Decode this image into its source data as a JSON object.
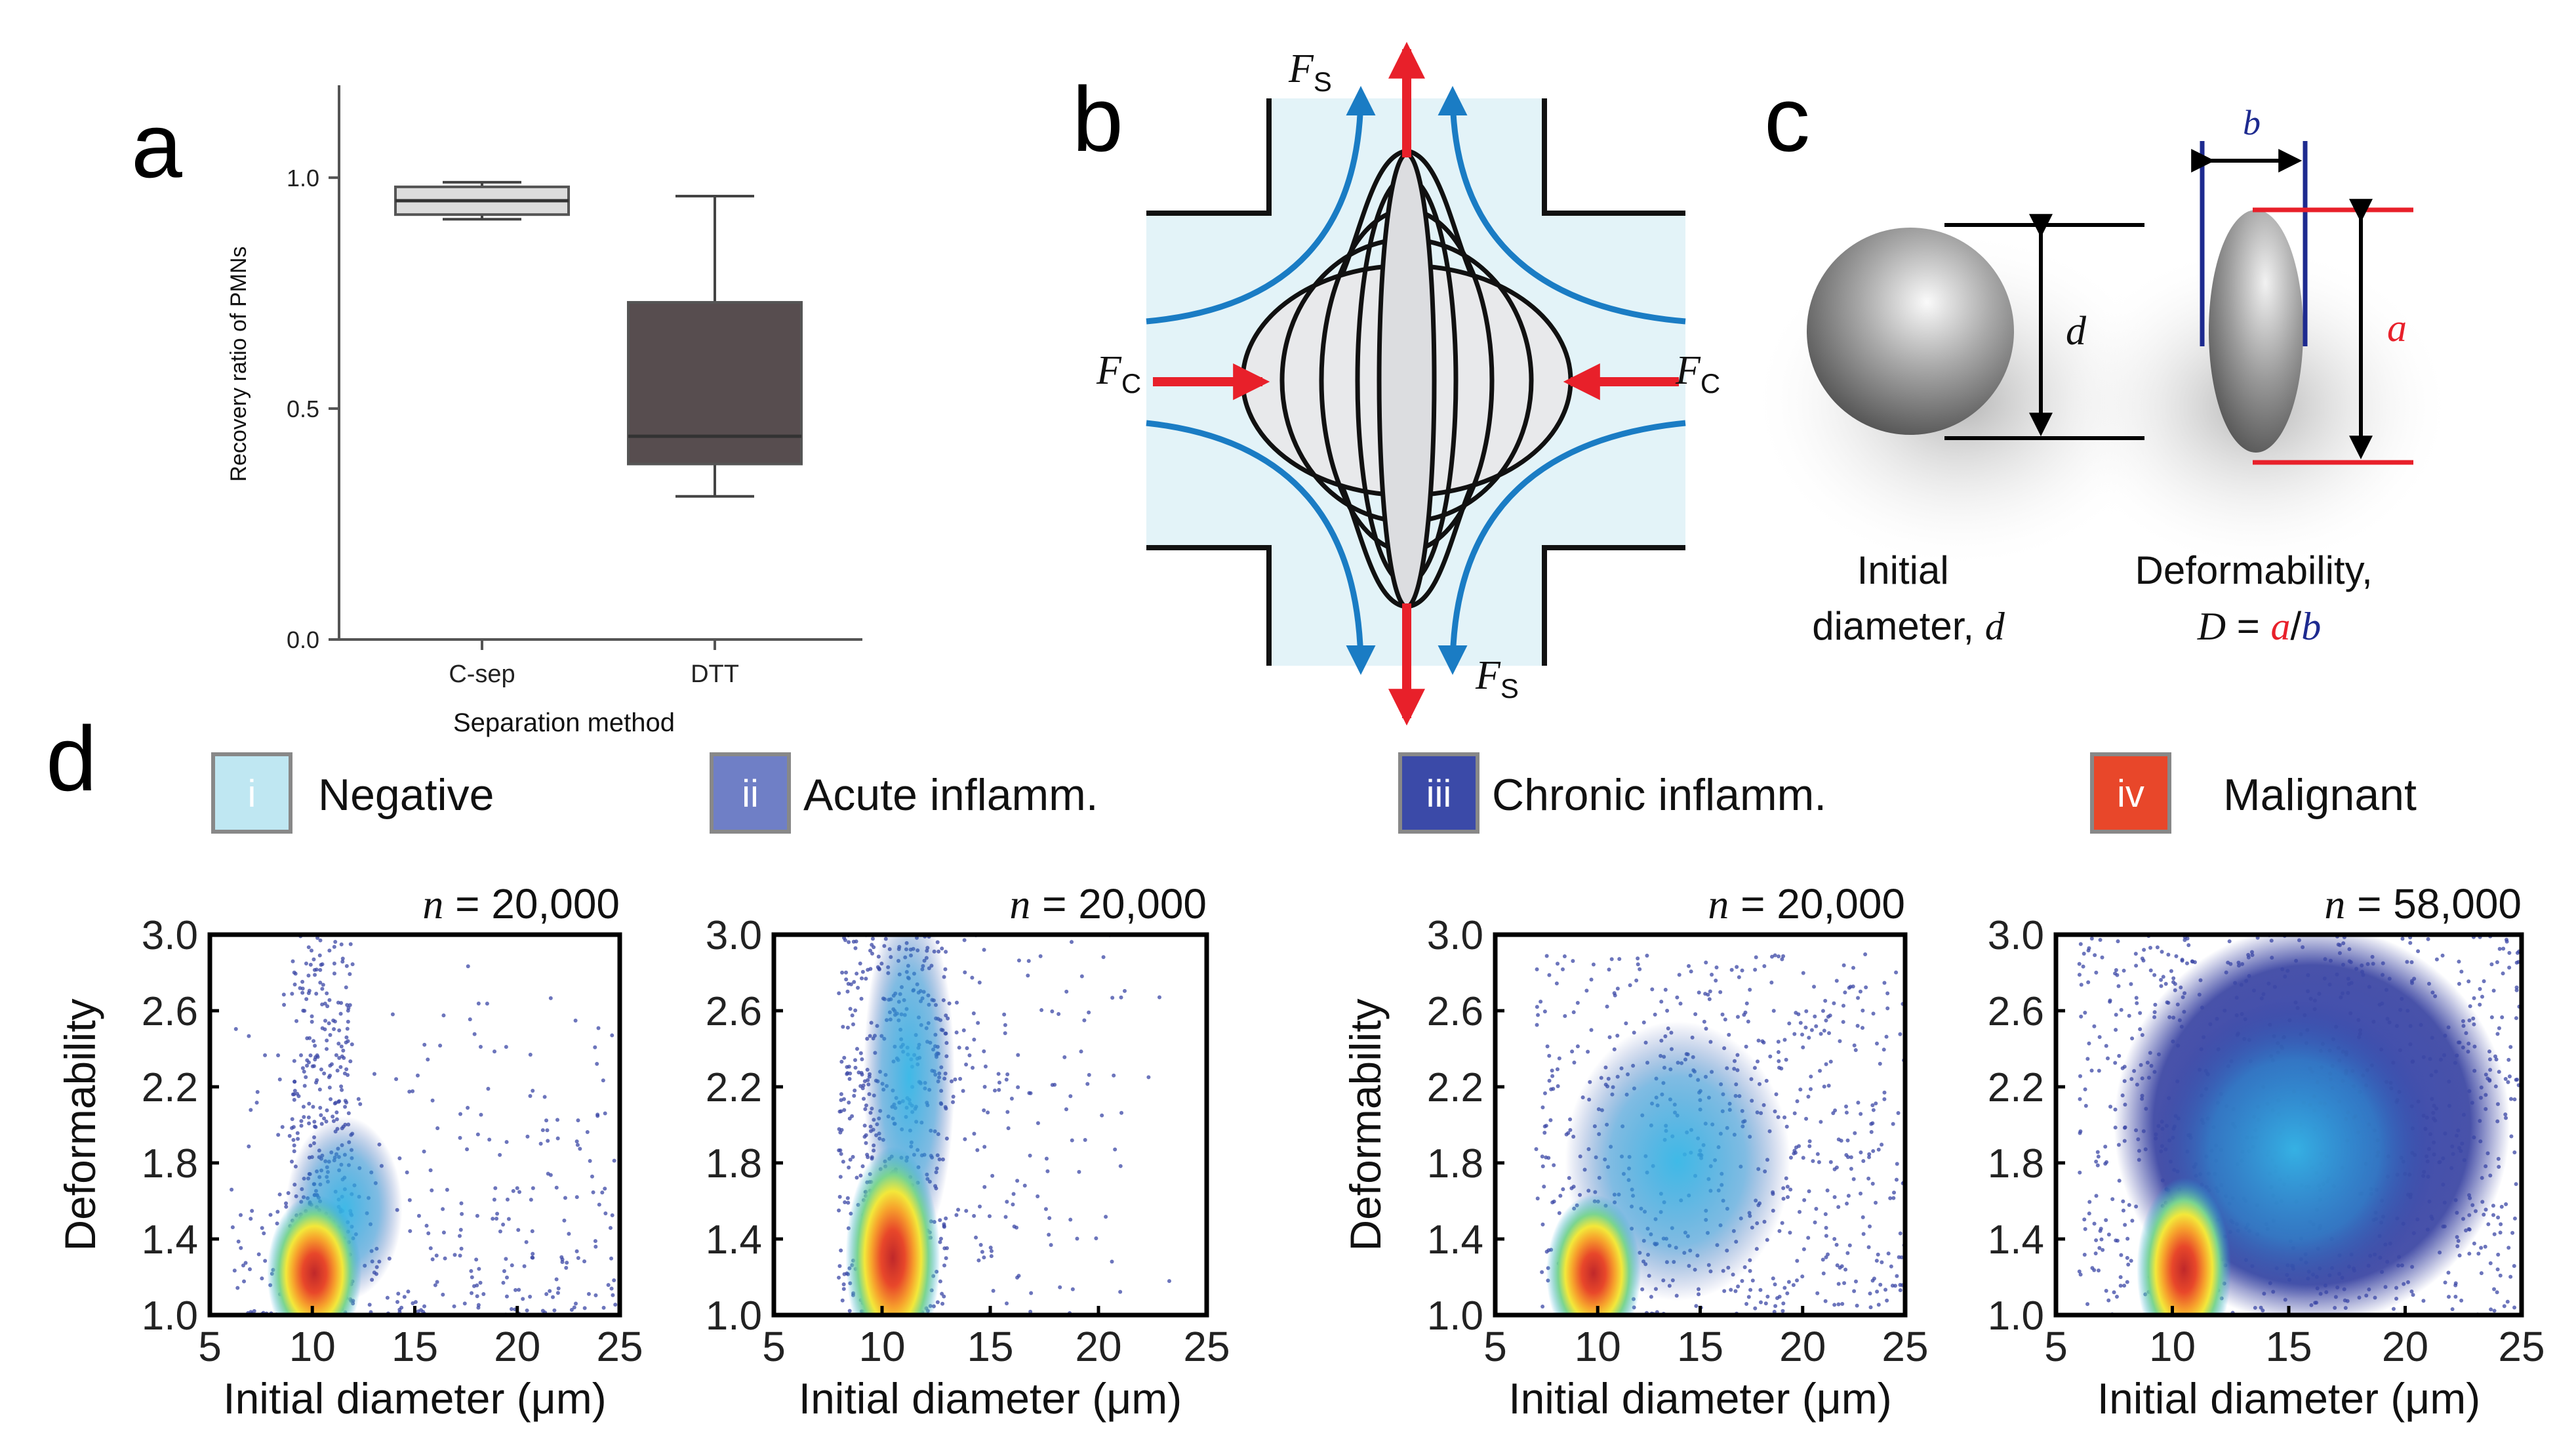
{
  "panel_letters": {
    "a": "a",
    "b": "b",
    "c": "c",
    "d": "d"
  },
  "panel_b": {
    "fs_sym": "F",
    "fs_sub": "S",
    "fc_sym": "F",
    "fc_sub": "C"
  },
  "panel_c": {
    "d_label": "d",
    "a_label": "a",
    "b_label": "b",
    "initial_line1": "Initial",
    "initial_line2": "diameter,",
    "initial_var": "d",
    "deform_line1": "Deformability,",
    "deform_D": "D",
    "deform_eq": " = ",
    "deform_a": "a",
    "deform_slash": "/",
    "deform_b": "b"
  },
  "legend": [
    {
      "roman": "i",
      "label": "Negative",
      "color": "#bfe7f2"
    },
    {
      "roman": "ii",
      "label": "Acute inflamm.",
      "color": "#6f7fc6"
    },
    {
      "roman": "iii",
      "label": "Chronic inflamm.",
      "color": "#3b4aa8"
    },
    {
      "roman": "iv",
      "label": "Malignant",
      "color": "#e8472a"
    }
  ],
  "chart_data": [
    {
      "type": "box",
      "panel": "a",
      "ylabel": "Recovery ratio of PMNs",
      "xlabel": "Separation method",
      "ylim": [
        0,
        1.2
      ],
      "yticks": [
        "0.0",
        "0.5",
        "1.0"
      ],
      "categories": [
        "C-sep",
        "DTT"
      ],
      "boxes": [
        {
          "category": "C-sep",
          "min": 0.91,
          "q1": 0.92,
          "median": 0.95,
          "q3": 0.98,
          "max": 0.99,
          "color": "#dcdcdc"
        },
        {
          "category": "DTT",
          "min": 0.31,
          "q1": 0.38,
          "median": 0.44,
          "q3": 0.73,
          "max": 0.96,
          "color": "#574d4f"
        }
      ]
    },
    {
      "type": "scatter",
      "panel": "d",
      "xlabel": "Initial diameter (μm)",
      "ylabel": "Deformability",
      "xlim": [
        5,
        25
      ],
      "ylim": [
        1.0,
        3.0
      ],
      "xticks": [
        "5",
        "10",
        "15",
        "20",
        "25"
      ],
      "yticks": [
        "1.0",
        "1.4",
        "1.8",
        "2.2",
        "2.6",
        "3.0"
      ],
      "plots": [
        {
          "n_label": "n = 20,000",
          "n_var": "n",
          "n_text": " = 20,000",
          "core": [
            10.1,
            1.22
          ],
          "halo_extent": [
            13,
            1.9
          ]
        },
        {
          "n_label": "n = 20,000",
          "n_var": "n",
          "n_text": " = 20,000",
          "core": [
            10.5,
            1.3
          ],
          "halo_extent": [
            12,
            2.8
          ]
        },
        {
          "n_label": "n = 20,000",
          "n_var": "n",
          "n_text": " = 20,000",
          "core": [
            9.8,
            1.22
          ],
          "halo_extent": [
            18,
            2.4
          ]
        },
        {
          "n_label": "n = 58,000",
          "n_var": "n",
          "n_text": " = 58,000",
          "core": [
            10.5,
            1.24
          ],
          "halo_extent": [
            20,
            2.5
          ]
        }
      ]
    }
  ]
}
